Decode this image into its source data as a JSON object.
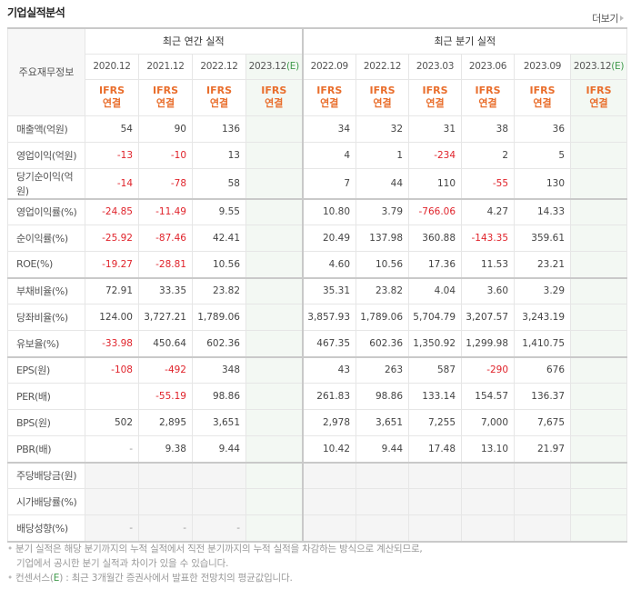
{
  "header": {
    "title": "기업실적분석",
    "more_label": "더보기"
  },
  "table": {
    "row_header": "주요재무정보",
    "groups": {
      "annual": "최근 연간 실적",
      "quarterly": "최근 분기 실적"
    },
    "periods": [
      {
        "label": "2020.12",
        "est": false
      },
      {
        "label": "2021.12",
        "est": false
      },
      {
        "label": "2022.12",
        "est": false
      },
      {
        "label": "2023.12",
        "est": true
      },
      {
        "label": "2022.09",
        "est": false
      },
      {
        "label": "2022.12",
        "est": false
      },
      {
        "label": "2023.03",
        "est": false
      },
      {
        "label": "2023.06",
        "est": false
      },
      {
        "label": "2023.09",
        "est": false
      },
      {
        "label": "2023.12",
        "est": true
      }
    ],
    "est_suffix": "(E)",
    "basis_top": "IFRS",
    "basis_bottom": "연결",
    "rows": [
      {
        "label": "매출액(억원)",
        "values": [
          "54",
          "90",
          "136",
          "",
          "34",
          "32",
          "31",
          "38",
          "36",
          ""
        ]
      },
      {
        "label": "영업이익(억원)",
        "values": [
          "-13",
          "-10",
          "13",
          "",
          "4",
          "1",
          "-234",
          "2",
          "5",
          ""
        ]
      },
      {
        "label": "당기순이익(억원)",
        "values": [
          "-14",
          "-78",
          "58",
          "",
          "7",
          "44",
          "110",
          "-55",
          "130",
          ""
        ]
      },
      {
        "label": "영업이익률(%)",
        "values": [
          "-24.85",
          "-11.49",
          "9.55",
          "",
          "10.80",
          "3.79",
          "-766.06",
          "4.27",
          "14.33",
          ""
        ]
      },
      {
        "label": "순이익률(%)",
        "values": [
          "-25.92",
          "-87.46",
          "42.41",
          "",
          "20.49",
          "137.98",
          "360.88",
          "-143.35",
          "359.61",
          ""
        ]
      },
      {
        "label": "ROE(%)",
        "values": [
          "-19.27",
          "-28.81",
          "10.56",
          "",
          "4.60",
          "10.56",
          "17.36",
          "11.53",
          "23.21",
          ""
        ]
      },
      {
        "label": "부채비율(%)",
        "values": [
          "72.91",
          "33.35",
          "23.82",
          "",
          "35.31",
          "23.82",
          "4.04",
          "3.60",
          "3.29",
          ""
        ]
      },
      {
        "label": "당좌비율(%)",
        "values": [
          "124.00",
          "3,727.21",
          "1,789.06",
          "",
          "3,857.93",
          "1,789.06",
          "5,704.79",
          "3,207.57",
          "3,243.19",
          ""
        ]
      },
      {
        "label": "유보율(%)",
        "values": [
          "-33.98",
          "450.64",
          "602.36",
          "",
          "467.35",
          "602.36",
          "1,350.92",
          "1,299.98",
          "1,410.75",
          ""
        ]
      },
      {
        "label": "EPS(원)",
        "values": [
          "-108",
          "-492",
          "348",
          "",
          "43",
          "263",
          "587",
          "-290",
          "676",
          ""
        ]
      },
      {
        "label": "PER(배)",
        "values": [
          "",
          "-55.19",
          "98.86",
          "",
          "261.83",
          "98.86",
          "133.14",
          "154.57",
          "136.37",
          ""
        ]
      },
      {
        "label": "BPS(원)",
        "values": [
          "502",
          "2,895",
          "3,651",
          "",
          "2,978",
          "3,651",
          "7,255",
          "7,000",
          "7,675",
          ""
        ]
      },
      {
        "label": "PBR(배)",
        "values": [
          "-",
          "9.38",
          "9.44",
          "",
          "10.42",
          "9.44",
          "17.48",
          "13.10",
          "21.97",
          ""
        ]
      },
      {
        "label": "주당배당금(원)",
        "values": [
          "",
          "",
          "",
          "",
          "",
          "",
          "",
          "",
          "",
          ""
        ]
      },
      {
        "label": "시가배당률(%)",
        "values": [
          "",
          "",
          "",
          "",
          "",
          "",
          "",
          "",
          "",
          ""
        ]
      },
      {
        "label": "배당성향(%)",
        "values": [
          "-",
          "-",
          "-",
          "",
          "",
          "",
          "",
          "",
          "",
          ""
        ]
      }
    ]
  },
  "notes": {
    "line1": "분기 실적은 해당 분기까지의 누적 실적에서 직전 분기까지의 누적 실적을 차감하는 방식으로 계산되므로,",
    "line2": "기업에서 공시한 분기 실적과 차이가 있을 수 있습니다.",
    "line3_pre": "컨센서스(",
    "line3_e": "E",
    "line3_post": ") : 최근 3개월간 증권사에서 발표한 전망치의 평균값입니다."
  },
  "colors": {
    "negative": "#e0232b",
    "ifrs": "#e96e2c",
    "estimate": "#3f9a4b",
    "estimate_bg": "#f3f8f3"
  }
}
